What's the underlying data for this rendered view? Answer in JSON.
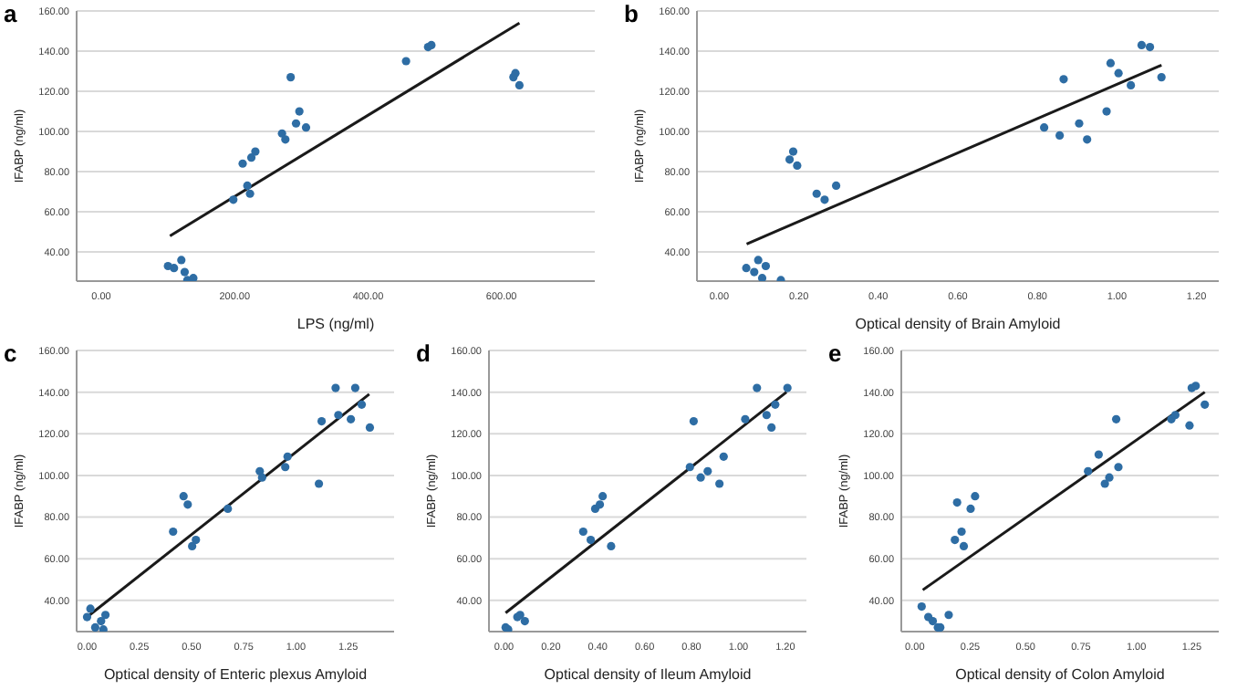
{
  "chart_data": [
    {
      "type": "scatter",
      "title": "a",
      "xlabel": "LPS (ng/ml)",
      "ylabel": "IFABP (ng/ml)",
      "grid": "y",
      "xlim": [
        -37,
        740
      ],
      "ylim": [
        25.5,
        160
      ],
      "xticks": [
        {
          "value": 0,
          "label": "0.00"
        },
        {
          "value": 200,
          "label": "200.00"
        },
        {
          "value": 400,
          "label": "400.00"
        },
        {
          "value": 600,
          "label": "600.00"
        }
      ],
      "yticks": [
        {
          "value": 40,
          "label": "40.00"
        },
        {
          "value": 60,
          "label": "60.00"
        },
        {
          "value": 80,
          "label": "80.00"
        },
        {
          "value": 100,
          "label": "100.00"
        },
        {
          "value": 120,
          "label": "120.00"
        },
        {
          "value": 140,
          "label": "140.00"
        },
        {
          "value": 160,
          "label": "160.00"
        }
      ],
      "series": [
        {
          "marker": "circle",
          "color": "#2e6da4",
          "x": [
            100,
            109,
            120,
            125,
            129,
            138,
            198,
            219,
            223,
            212,
            225,
            231,
            271,
            276,
            284,
            292,
            297,
            307,
            457,
            490,
            495,
            618,
            621,
            627
          ],
          "values": [
            33,
            32,
            36,
            30,
            26,
            27,
            66,
            73,
            69,
            84,
            87,
            90,
            99,
            96,
            127,
            104,
            110,
            102,
            135,
            142,
            143,
            127,
            129,
            123
          ]
        },
        {
          "type": "line",
          "color": "#1a1a1a",
          "x": [
            103,
            627
          ],
          "values": [
            48,
            154
          ]
        }
      ]
    },
    {
      "type": "scatter",
      "title": "b",
      "xlabel": "Optical density of Brain Amyloid",
      "ylabel": "IFABP (ng/ml)",
      "grid": "y",
      "xlim": [
        -0.056,
        1.256
      ],
      "ylim": [
        25.5,
        160
      ],
      "xticks": [
        {
          "value": 0,
          "label": "0.00"
        },
        {
          "value": 0.2,
          "label": "0.20"
        },
        {
          "value": 0.4,
          "label": "0.40"
        },
        {
          "value": 0.6,
          "label": "0.60"
        },
        {
          "value": 0.8,
          "label": "0.80"
        },
        {
          "value": 1,
          "label": "1.00"
        },
        {
          "value": 1.2,
          "label": "1.20"
        }
      ],
      "yticks": [
        {
          "value": 40,
          "label": "40.00"
        },
        {
          "value": 60,
          "label": "60.00"
        },
        {
          "value": 80,
          "label": "80.00"
        },
        {
          "value": 100,
          "label": "100.00"
        },
        {
          "value": 120,
          "label": "120.00"
        },
        {
          "value": 140,
          "label": "140.00"
        },
        {
          "value": 160,
          "label": "160.00"
        }
      ],
      "series": [
        {
          "marker": "circle",
          "color": "#2e6da4",
          "x": [
            0.068,
            0.088,
            0.098,
            0.117,
            0.108,
            0.155,
            0.177,
            0.186,
            0.196,
            0.245,
            0.265,
            0.294,
            0.817,
            0.856,
            0.866,
            0.905,
            0.925,
            0.974,
            0.984,
            1.004,
            1.035,
            1.062,
            1.083,
            1.112
          ],
          "values": [
            32,
            30,
            36,
            33,
            27,
            26,
            86,
            90,
            83,
            69,
            66,
            73,
            102,
            98,
            126,
            104,
            96,
            110,
            134,
            129,
            123,
            143,
            142,
            127
          ]
        },
        {
          "type": "line",
          "color": "#1a1a1a",
          "x": [
            0.069,
            1.112
          ],
          "values": [
            44,
            133
          ]
        }
      ]
    },
    {
      "type": "scatter",
      "title": "c",
      "xlabel": "Optical density of Enteric plexus  Amyloid",
      "ylabel": "IFABP (ng/ml)",
      "grid": "y",
      "xlim": [
        -0.05,
        1.47
      ],
      "ylim": [
        25,
        160
      ],
      "xticks": [
        {
          "value": 0,
          "label": "0.00"
        },
        {
          "value": 0.25,
          "label": "0.25"
        },
        {
          "value": 0.5,
          "label": "0.50"
        },
        {
          "value": 0.75,
          "label": "0.75"
        },
        {
          "value": 1,
          "label": "1.00"
        },
        {
          "value": 1.25,
          "label": "1.25"
        }
      ],
      "yticks": [
        {
          "value": 40,
          "label": "40.00"
        },
        {
          "value": 60,
          "label": "60.00"
        },
        {
          "value": 80,
          "label": "80.00"
        },
        {
          "value": 100,
          "label": "100.00"
        },
        {
          "value": 120,
          "label": "120.00"
        },
        {
          "value": 140,
          "label": "140.00"
        },
        {
          "value": 160,
          "label": "160.00"
        }
      ],
      "series": [
        {
          "marker": "circle",
          "color": "#2e6da4",
          "x": [
            0,
            0.016,
            0.039,
            0.067,
            0.078,
            0.088,
            0.412,
            0.462,
            0.482,
            0.503,
            0.521,
            0.674,
            0.827,
            0.838,
            0.949,
            0.96,
            1.11,
            1.123,
            1.19,
            1.203,
            1.263,
            1.284,
            1.315,
            1.354
          ],
          "values": [
            32,
            36,
            27,
            30,
            26,
            33,
            73,
            90,
            86,
            66,
            69,
            84,
            102,
            99,
            104,
            109,
            96,
            126,
            142,
            129,
            127,
            142,
            134,
            123
          ]
        },
        {
          "type": "line",
          "color": "#1a1a1a",
          "x": [
            0,
            1.351
          ],
          "values": [
            32,
            139
          ]
        }
      ]
    },
    {
      "type": "scatter",
      "title": "d",
      "xlabel": "Optical density of Ileum Amyloid",
      "ylabel": "IFABP (ng/ml)",
      "grid": "y",
      "xlim": [
        -0.064,
        1.29
      ],
      "ylim": [
        25,
        160
      ],
      "xticks": [
        {
          "value": 0,
          "label": "0.00"
        },
        {
          "value": 0.2,
          "label": "0.20"
        },
        {
          "value": 0.4,
          "label": "0.40"
        },
        {
          "value": 0.6,
          "label": "0.60"
        },
        {
          "value": 0.8,
          "label": "0.80"
        },
        {
          "value": 1,
          "label": "1.00"
        },
        {
          "value": 1.2,
          "label": "1.20"
        }
      ],
      "yticks": [
        {
          "value": 40,
          "label": "40.00"
        },
        {
          "value": 60,
          "label": "60.00"
        },
        {
          "value": 80,
          "label": "80.00"
        },
        {
          "value": 100,
          "label": "100.00"
        },
        {
          "value": 120,
          "label": "120.00"
        },
        {
          "value": 140,
          "label": "140.00"
        },
        {
          "value": 160,
          "label": "160.00"
        }
      ],
      "series": [
        {
          "marker": "circle",
          "color": "#2e6da4",
          "x": [
            0.007,
            0.018,
            0.057,
            0.069,
            0.089,
            0.338,
            0.37,
            0.389,
            0.409,
            0.421,
            0.457,
            0.793,
            0.809,
            0.839,
            0.869,
            0.919,
            0.937,
            1.029,
            1.079,
            1.12,
            1.141,
            1.157,
            1.209
          ],
          "values": [
            27,
            26,
            32,
            33,
            30,
            73,
            69,
            84,
            86,
            90,
            66,
            104,
            126,
            99,
            102,
            96,
            109,
            127,
            142,
            129,
            123,
            134,
            142
          ]
        },
        {
          "type": "line",
          "color": "#1a1a1a",
          "x": [
            0.007,
            1.205
          ],
          "values": [
            34,
            140
          ]
        }
      ]
    },
    {
      "type": "scatter",
      "title": "e",
      "xlabel": "Optical density of Colon Amyloid",
      "ylabel": "IFABP (ng/ml)",
      "grid": "y",
      "xlim": [
        -0.061,
        1.372
      ],
      "ylim": [
        25,
        160
      ],
      "xticks": [
        {
          "value": 0,
          "label": "0.00"
        },
        {
          "value": 0.25,
          "label": "0.25"
        },
        {
          "value": 0.5,
          "label": "0.50"
        },
        {
          "value": 0.75,
          "label": "0.75"
        },
        {
          "value": 1,
          "label": "1.00"
        },
        {
          "value": 1.25,
          "label": "1.25"
        }
      ],
      "yticks": [
        {
          "value": 40,
          "label": "40.00"
        },
        {
          "value": 60,
          "label": "60.00"
        },
        {
          "value": 80,
          "label": "80.00"
        },
        {
          "value": 100,
          "label": "100.00"
        },
        {
          "value": 120,
          "label": "120.00"
        },
        {
          "value": 140,
          "label": "140.00"
        },
        {
          "value": 160,
          "label": "160.00"
        }
      ],
      "series": [
        {
          "marker": "circle",
          "color": "#2e6da4",
          "x": [
            0.031,
            0.061,
            0.081,
            0.104,
            0.115,
            0.153,
            0.181,
            0.191,
            0.211,
            0.221,
            0.252,
            0.272,
            0.782,
            0.83,
            0.858,
            0.878,
            0.909,
            0.919,
            1.158,
            1.176,
            1.24,
            1.25,
            1.268,
            1.309
          ],
          "values": [
            37,
            32,
            30,
            27,
            27,
            33,
            69,
            87,
            73,
            66,
            84,
            90,
            102,
            110,
            96,
            99,
            127,
            104,
            127,
            129,
            124,
            142,
            143,
            134
          ]
        },
        {
          "type": "line",
          "color": "#1a1a1a",
          "x": [
            0.036,
            1.309
          ],
          "values": [
            45,
            140
          ]
        }
      ]
    }
  ]
}
